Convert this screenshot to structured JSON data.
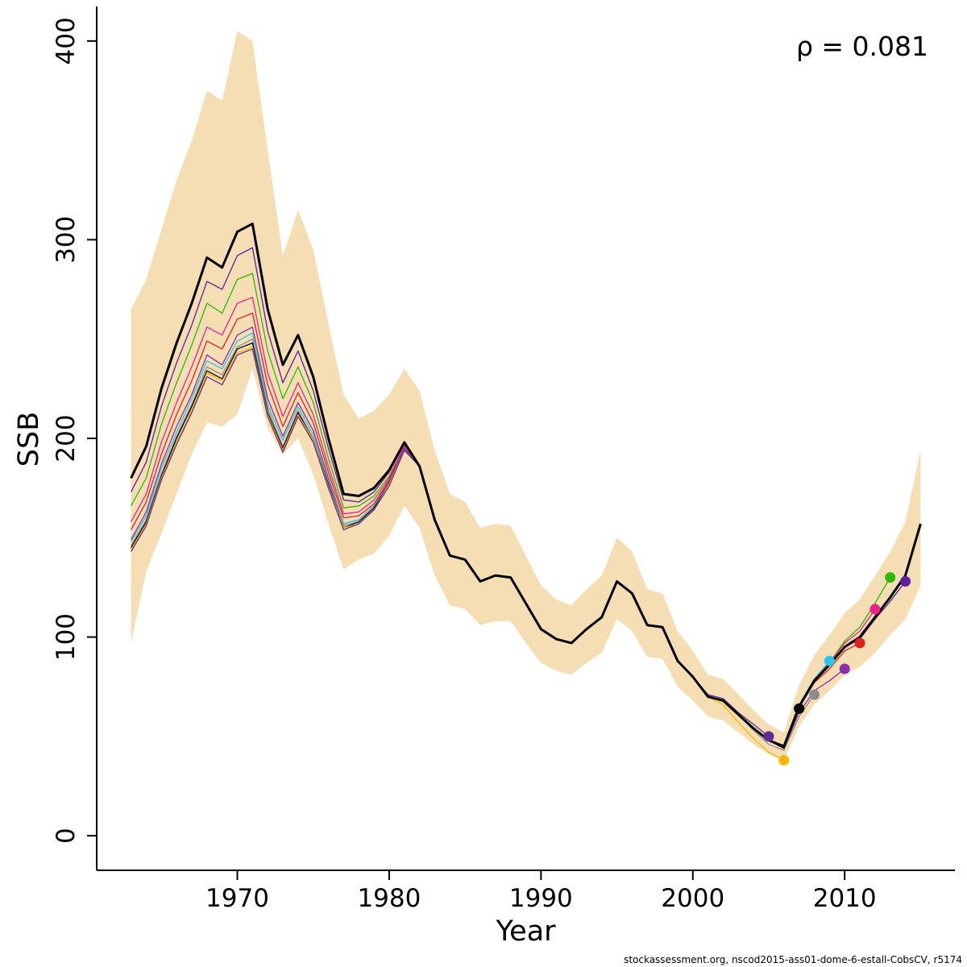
{
  "annotation": {
    "rho_label": "ρ = 0.081"
  },
  "footer": {
    "source_text": "stockassessment.org, nscod2015-ass01-dome-6-estall-CobsCV, r5174"
  },
  "chart_data": {
    "type": "line",
    "title": "",
    "xlabel": "Year",
    "ylabel": "SSB",
    "xlim": [
      1963,
      2015
    ],
    "ylim": [
      0,
      400
    ],
    "grid": false,
    "legend": "none",
    "x_ticks": [
      1970,
      1980,
      1990,
      2000,
      2010
    ],
    "y_ticks": [
      0,
      100,
      200,
      300,
      400
    ],
    "years": [
      1963,
      1964,
      1965,
      1966,
      1967,
      1968,
      1969,
      1970,
      1971,
      1972,
      1973,
      1974,
      1975,
      1976,
      1977,
      1978,
      1979,
      1980,
      1981,
      1982,
      1983,
      1984,
      1985,
      1986,
      1987,
      1988,
      1989,
      1990,
      1991,
      1992,
      1993,
      1994,
      1995,
      1996,
      1997,
      1998,
      1999,
      2000,
      2001,
      2002,
      2003,
      2004,
      2005,
      2006,
      2007,
      2008,
      2009,
      2010,
      2011,
      2012,
      2013,
      2014,
      2015
    ],
    "band": {
      "color": "#F5DEB3",
      "upper": [
        265,
        280,
        305,
        330,
        350,
        375,
        370,
        405,
        400,
        345,
        292,
        315,
        295,
        258,
        222,
        210,
        214,
        222,
        235,
        224,
        194,
        172,
        168,
        155,
        157,
        156,
        141,
        126,
        119,
        116,
        124,
        131,
        150,
        143,
        124,
        122,
        103,
        93,
        81,
        79,
        71,
        63,
        56,
        52,
        76,
        91,
        101,
        112,
        119,
        131,
        143,
        158,
        194
      ],
      "lower": [
        97,
        133,
        152,
        172,
        192,
        208,
        206,
        212,
        235,
        205,
        192,
        200,
        182,
        157,
        134,
        139,
        142,
        151,
        166,
        155,
        131,
        116,
        114,
        106,
        108,
        108,
        97,
        87,
        83,
        81,
        87,
        92,
        109,
        103,
        90,
        89,
        75,
        68,
        60,
        58,
        52,
        46,
        41,
        38,
        55,
        66,
        73,
        81,
        85,
        92,
        101,
        109,
        126
      ]
    },
    "base_series": {
      "name": "final assessment",
      "color": "#000000",
      "values": [
        180,
        196,
        225,
        248,
        268,
        291,
        286,
        304,
        308,
        265,
        237,
        252,
        231,
        200,
        172,
        171,
        175,
        184,
        198,
        186,
        159,
        141,
        139,
        128,
        131,
        130,
        117,
        104,
        99,
        97,
        104,
        110,
        128,
        122,
        106,
        105,
        88,
        80,
        70,
        68,
        61,
        54,
        48,
        45,
        65,
        78,
        86,
        95,
        100,
        110,
        120,
        131,
        157
      ]
    },
    "retro_series": [
      {
        "end_year": 2014,
        "color": "#5B1E9E",
        "values": [
          173,
          188,
          216,
          238,
          257,
          279,
          275,
          292,
          296,
          254,
          228,
          244,
          224,
          195,
          169,
          168,
          173,
          183,
          197,
          186,
          159,
          141,
          139,
          128,
          131,
          130,
          117,
          104,
          99,
          97,
          104,
          110,
          128,
          122,
          106,
          105,
          88,
          80,
          70,
          68,
          61,
          54,
          48,
          45,
          65,
          78,
          86,
          95,
          99,
          109,
          118,
          128
        ]
      },
      {
        "end_year": 2013,
        "color": "#2EB800",
        "values": [
          166,
          180,
          207,
          228,
          247,
          268,
          263,
          280,
          283,
          244,
          220,
          236,
          218,
          190,
          165,
          166,
          171,
          181,
          196,
          186,
          159,
          141,
          139,
          128,
          131,
          130,
          117,
          104,
          99,
          97,
          104,
          110,
          128,
          122,
          106,
          105,
          88,
          80,
          70,
          68,
          61,
          54,
          48,
          45,
          65,
          78,
          87,
          98,
          105,
          117,
          130
        ]
      },
      {
        "end_year": 2012,
        "color": "#E8218C",
        "values": [
          158,
          172,
          198,
          218,
          236,
          256,
          252,
          268,
          271,
          233,
          211,
          228,
          212,
          186,
          162,
          163,
          169,
          180,
          196,
          186,
          159,
          141,
          139,
          128,
          131,
          130,
          117,
          104,
          99,
          97,
          104,
          110,
          128,
          122,
          106,
          105,
          88,
          80,
          70,
          68,
          61,
          54,
          48,
          45,
          65,
          79,
          87,
          97,
          103,
          114
        ]
      },
      {
        "end_year": 2011,
        "color": "#E02020",
        "values": [
          154,
          168,
          192,
          212,
          229,
          249,
          245,
          260,
          263,
          227,
          206,
          223,
          208,
          183,
          160,
          161,
          167,
          179,
          195,
          186,
          159,
          141,
          139,
          128,
          131,
          130,
          117,
          104,
          99,
          97,
          104,
          110,
          128,
          122,
          106,
          105,
          88,
          80,
          70,
          68,
          61,
          54,
          48,
          45,
          65,
          77,
          84,
          93,
          97
        ]
      },
      {
        "end_year": 2010,
        "color": "#8B2FA8",
        "values": [
          149,
          163,
          187,
          206,
          222,
          242,
          237,
          252,
          256,
          220,
          201,
          218,
          204,
          180,
          157,
          159,
          166,
          178,
          195,
          186,
          159,
          141,
          139,
          128,
          131,
          130,
          117,
          104,
          99,
          97,
          104,
          110,
          128,
          122,
          106,
          105,
          88,
          80,
          70,
          68,
          61,
          54,
          48,
          44,
          62,
          73,
          78,
          84
        ]
      },
      {
        "end_year": 2009,
        "color": "#29C5E6",
        "values": [
          148,
          161,
          185,
          203,
          220,
          239,
          235,
          249,
          253,
          217,
          199,
          216,
          202,
          178,
          157,
          159,
          166,
          177,
          194,
          186,
          159,
          141,
          139,
          128,
          131,
          130,
          117,
          104,
          99,
          97,
          104,
          110,
          128,
          122,
          106,
          105,
          88,
          80,
          70,
          68,
          61,
          54,
          48,
          45,
          66,
          79,
          88
        ]
      },
      {
        "end_year": 2008,
        "color": "#8C8C8C",
        "values": [
          146,
          159,
          182,
          201,
          217,
          236,
          232,
          246,
          250,
          215,
          196,
          214,
          200,
          177,
          156,
          158,
          165,
          177,
          194,
          186,
          159,
          141,
          139,
          128,
          131,
          130,
          117,
          104,
          99,
          97,
          104,
          110,
          128,
          122,
          106,
          105,
          88,
          80,
          70,
          68,
          61,
          53,
          46,
          43,
          60,
          71
        ]
      },
      {
        "end_year": 2007,
        "color": "#000000",
        "values": [
          145,
          158,
          181,
          200,
          216,
          234,
          230,
          245,
          248,
          213,
          195,
          213,
          199,
          177,
          155,
          158,
          165,
          177,
          194,
          186,
          159,
          141,
          139,
          128,
          131,
          130,
          117,
          104,
          99,
          97,
          104,
          110,
          128,
          122,
          106,
          105,
          88,
          80,
          70,
          68,
          61,
          54,
          48,
          44,
          64
        ]
      },
      {
        "end_year": 2006,
        "color": "#FFB300",
        "values": [
          144,
          157,
          180,
          198,
          214,
          233,
          229,
          243,
          246,
          212,
          194,
          212,
          199,
          176,
          155,
          157,
          164,
          177,
          194,
          186,
          159,
          141,
          139,
          128,
          131,
          130,
          117,
          104,
          99,
          97,
          104,
          110,
          128,
          122,
          106,
          105,
          88,
          80,
          70,
          66,
          57,
          49,
          42,
          38
        ]
      },
      {
        "end_year": 2005,
        "color": "#5E2B97",
        "values": [
          143,
          156,
          179,
          197,
          213,
          231,
          227,
          242,
          245,
          211,
          193,
          211,
          198,
          175,
          154,
          157,
          164,
          176,
          194,
          186,
          159,
          141,
          139,
          128,
          131,
          130,
          117,
          104,
          99,
          97,
          104,
          110,
          128,
          122,
          106,
          105,
          88,
          80,
          71,
          69,
          62,
          56,
          50
        ]
      }
    ]
  }
}
